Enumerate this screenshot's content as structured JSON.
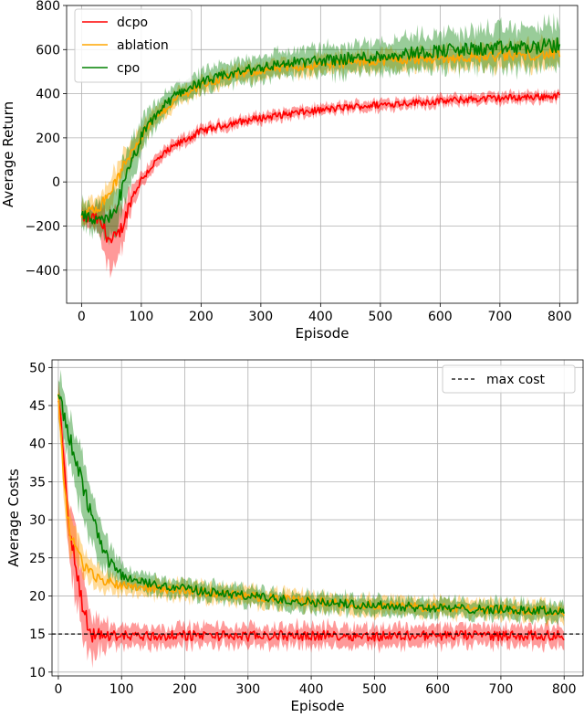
{
  "chart_data": [
    {
      "type": "line",
      "xlabel": "Episode",
      "ylabel": "Average Return",
      "xlim": [
        -25,
        830
      ],
      "ylim": [
        -550,
        800
      ],
      "xticks": [
        0,
        100,
        200,
        300,
        400,
        500,
        600,
        700,
        800
      ],
      "yticks": [
        -400,
        -200,
        0,
        200,
        400,
        600,
        800
      ],
      "xtick_labels": [
        "0",
        "100",
        "200",
        "300",
        "400",
        "500",
        "600",
        "700",
        "800"
      ],
      "ytick_labels": [
        "−400",
        "−200",
        "0",
        "200",
        "400",
        "600",
        "800"
      ],
      "grid": true,
      "legend_position": "top-left",
      "x": [
        0,
        10,
        20,
        30,
        40,
        50,
        60,
        70,
        80,
        90,
        100,
        120,
        140,
        160,
        180,
        200,
        250,
        300,
        350,
        400,
        450,
        500,
        550,
        600,
        650,
        700,
        750,
        800
      ],
      "series": [
        {
          "name": "dcpo",
          "color": "#ff0000",
          "values": [
            -160,
            -170,
            -160,
            -180,
            -220,
            -280,
            -250,
            -190,
            -100,
            -40,
            10,
            80,
            130,
            170,
            200,
            230,
            265,
            290,
            310,
            325,
            340,
            350,
            360,
            365,
            375,
            380,
            385,
            390
          ],
          "band": [
            30,
            40,
            50,
            70,
            110,
            140,
            110,
            80,
            60,
            45,
            35,
            30,
            28,
            25,
            25,
            22,
            22,
            22,
            22,
            22,
            22,
            22,
            22,
            22,
            22,
            22,
            22,
            22
          ]
        },
        {
          "name": "ablation",
          "color": "#ffa500",
          "values": [
            -150,
            -140,
            -120,
            -110,
            -80,
            -30,
            10,
            70,
            120,
            170,
            210,
            280,
            330,
            380,
            410,
            440,
            480,
            505,
            520,
            530,
            540,
            550,
            555,
            560,
            565,
            570,
            575,
            580
          ],
          "band": [
            50,
            50,
            55,
            55,
            60,
            60,
            60,
            60,
            55,
            50,
            45,
            40,
            35,
            35,
            35,
            35,
            35,
            35,
            35,
            40,
            40,
            40,
            45,
            45,
            50,
            55,
            55,
            60
          ]
        },
        {
          "name": "cpo",
          "color": "#008000",
          "values": [
            -150,
            -160,
            -180,
            -180,
            -170,
            -150,
            -100,
            -20,
            60,
            130,
            200,
            290,
            350,
            400,
            430,
            450,
            490,
            520,
            540,
            550,
            560,
            570,
            585,
            595,
            600,
            605,
            610,
            620
          ],
          "band": [
            60,
            60,
            60,
            70,
            80,
            90,
            100,
            100,
            90,
            80,
            70,
            55,
            45,
            45,
            45,
            45,
            50,
            55,
            55,
            60,
            65,
            70,
            75,
            80,
            85,
            90,
            90,
            95
          ]
        }
      ]
    },
    {
      "type": "line",
      "xlabel": "Episode",
      "ylabel": "Average Costs",
      "xlim": [
        -10,
        830
      ],
      "ylim": [
        9.5,
        51
      ],
      "xticks": [
        0,
        100,
        200,
        300,
        400,
        500,
        600,
        700,
        800
      ],
      "yticks": [
        10,
        15,
        20,
        25,
        30,
        35,
        40,
        45,
        50
      ],
      "xtick_labels": [
        "0",
        "100",
        "200",
        "300",
        "400",
        "500",
        "600",
        "700",
        "800"
      ],
      "ytick_labels": [
        "10",
        "15",
        "20",
        "25",
        "30",
        "35",
        "40",
        "45",
        "50"
      ],
      "grid": true,
      "legend_position": "top-right",
      "reference_line": {
        "name": "max cost",
        "y": 15,
        "color": "#000000",
        "style": "dashed"
      },
      "x": [
        0,
        5,
        10,
        15,
        20,
        30,
        40,
        50,
        60,
        70,
        80,
        90,
        100,
        120,
        150,
        200,
        250,
        300,
        350,
        400,
        450,
        500,
        550,
        600,
        650,
        700,
        750,
        800
      ],
      "series": [
        {
          "name": "dcpo",
          "color": "#ff0000",
          "values": [
            46,
            42,
            36,
            31,
            28,
            22,
            18,
            15,
            15,
            14.8,
            14.8,
            14.8,
            14.8,
            14.8,
            14.7,
            14.8,
            14.8,
            14.7,
            14.8,
            14.8,
            14.8,
            14.7,
            14.8,
            14.8,
            14.8,
            14.8,
            14.8,
            14.8
          ],
          "band": [
            2,
            2.5,
            3,
            3.5,
            4,
            4.5,
            4.5,
            3.5,
            2.5,
            2,
            1.6,
            1.4,
            1.3,
            1.3,
            1.3,
            1.3,
            1.3,
            1.3,
            1.3,
            1.3,
            1.3,
            1.3,
            1.3,
            1.3,
            1.3,
            1.3,
            1.3,
            1.3
          ]
        },
        {
          "name": "ablation",
          "color": "#ffa500",
          "values": [
            46,
            40,
            34,
            30,
            28,
            26,
            24,
            23,
            22.5,
            22,
            21.8,
            21.6,
            21.5,
            21.3,
            21,
            20.8,
            20.3,
            20,
            19.6,
            19.3,
            19,
            18.8,
            18.6,
            18.5,
            18.3,
            18.2,
            18.1,
            18
          ],
          "band": [
            1.5,
            2.5,
            3,
            3,
            2.5,
            2,
            1.8,
            1.6,
            1.5,
            1.4,
            1.3,
            1.2,
            1.2,
            1.1,
            1.1,
            1.1,
            1.1,
            1.1,
            1.1,
            1.1,
            1.1,
            1.1,
            1.1,
            1.1,
            1.1,
            1.1,
            1.1,
            1.2
          ]
        },
        {
          "name": "cpo",
          "color": "#008000",
          "values": [
            46,
            45,
            43,
            41.5,
            40,
            37,
            34,
            31,
            28.5,
            26,
            24.5,
            23.5,
            22.8,
            22,
            21.5,
            21,
            20.4,
            20,
            19.6,
            19.2,
            19,
            18.8,
            18.6,
            18.4,
            18.3,
            18.2,
            18.1,
            18
          ],
          "band": [
            2.5,
            2.8,
            3,
            3.2,
            3.5,
            3.8,
            3.8,
            3.5,
            3,
            2.5,
            2,
            1.6,
            1.4,
            1.2,
            1.1,
            1.1,
            1.1,
            1.1,
            1.1,
            1.1,
            1.1,
            1.1,
            1.1,
            1.1,
            1.1,
            1.1,
            1.1,
            1.1
          ]
        }
      ]
    }
  ]
}
